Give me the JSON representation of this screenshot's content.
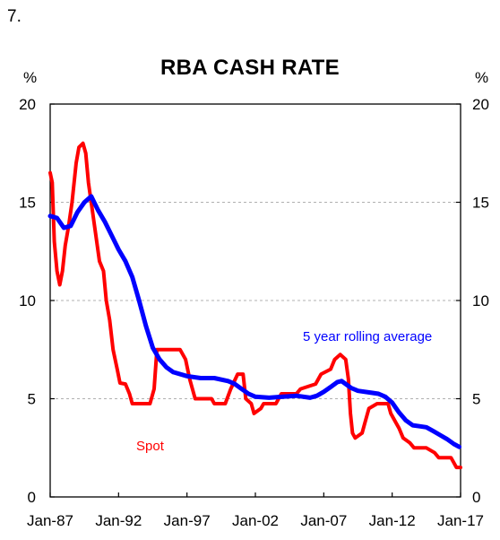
{
  "page_number": "7.",
  "chart_data": {
    "type": "line",
    "title": "RBA CASH RATE",
    "ylabel_left": "%",
    "ylabel_right": "%",
    "ylim": [
      0,
      20
    ],
    "y_ticks": [
      "0",
      "5",
      "10",
      "15",
      "20"
    ],
    "xlim": [
      1987.0,
      2017.0
    ],
    "x_ticks": [
      {
        "label": "Jan-87",
        "x": 1987.0
      },
      {
        "label": "Jan-92",
        "x": 1992.0
      },
      {
        "label": "Jan-97",
        "x": 1997.0
      },
      {
        "label": "Jan-02",
        "x": 2002.0
      },
      {
        "label": "Jan-07",
        "x": 2007.0
      },
      {
        "label": "Jan-12",
        "x": 2012.0
      },
      {
        "label": "Jan-17",
        "x": 2017.0
      }
    ],
    "grid": "horizontal dashed",
    "series": [
      {
        "name": "Spot",
        "color": "#ff0000",
        "points": [
          [
            1987.0,
            16.5
          ],
          [
            1987.15,
            16.0
          ],
          [
            1987.3,
            13.0
          ],
          [
            1987.5,
            11.5
          ],
          [
            1987.7,
            10.8
          ],
          [
            1987.9,
            11.5
          ],
          [
            1988.1,
            12.8
          ],
          [
            1988.35,
            13.8
          ],
          [
            1988.6,
            15.0
          ],
          [
            1988.9,
            17.0
          ],
          [
            1989.1,
            17.8
          ],
          [
            1989.4,
            18.0
          ],
          [
            1989.6,
            17.5
          ],
          [
            1989.8,
            16.0
          ],
          [
            1990.0,
            15.0
          ],
          [
            1990.3,
            13.5
          ],
          [
            1990.6,
            12.0
          ],
          [
            1990.9,
            11.5
          ],
          [
            1991.1,
            10.0
          ],
          [
            1991.35,
            9.0
          ],
          [
            1991.6,
            7.5
          ],
          [
            1991.9,
            6.5
          ],
          [
            1992.1,
            5.8
          ],
          [
            1992.5,
            5.75
          ],
          [
            1992.8,
            5.25
          ],
          [
            1993.0,
            4.75
          ],
          [
            1993.5,
            4.75
          ],
          [
            1994.3,
            4.75
          ],
          [
            1994.6,
            5.5
          ],
          [
            1994.8,
            7.5
          ],
          [
            1995.5,
            7.5
          ],
          [
            1996.5,
            7.5
          ],
          [
            1996.9,
            7.0
          ],
          [
            1997.2,
            6.0
          ],
          [
            1997.6,
            5.0
          ],
          [
            1998.0,
            5.0
          ],
          [
            1998.8,
            5.0
          ],
          [
            1999.0,
            4.75
          ],
          [
            1999.8,
            4.75
          ],
          [
            2000.2,
            5.5
          ],
          [
            2000.7,
            6.25
          ],
          [
            2001.1,
            6.25
          ],
          [
            2001.3,
            5.0
          ],
          [
            2001.7,
            4.75
          ],
          [
            2001.9,
            4.25
          ],
          [
            2002.4,
            4.5
          ],
          [
            2002.6,
            4.75
          ],
          [
            2003.5,
            4.75
          ],
          [
            2003.9,
            5.25
          ],
          [
            2005.0,
            5.25
          ],
          [
            2005.3,
            5.5
          ],
          [
            2006.4,
            5.75
          ],
          [
            2006.8,
            6.25
          ],
          [
            2007.5,
            6.5
          ],
          [
            2007.8,
            7.0
          ],
          [
            2008.2,
            7.25
          ],
          [
            2008.6,
            7.0
          ],
          [
            2008.8,
            6.0
          ],
          [
            2008.95,
            4.25
          ],
          [
            2009.1,
            3.25
          ],
          [
            2009.3,
            3.0
          ],
          [
            2009.8,
            3.25
          ],
          [
            2010.0,
            3.75
          ],
          [
            2010.3,
            4.5
          ],
          [
            2010.9,
            4.75
          ],
          [
            2011.7,
            4.75
          ],
          [
            2011.9,
            4.25
          ],
          [
            2012.3,
            3.75
          ],
          [
            2012.5,
            3.5
          ],
          [
            2012.8,
            3.0
          ],
          [
            2013.3,
            2.75
          ],
          [
            2013.6,
            2.5
          ],
          [
            2014.5,
            2.5
          ],
          [
            2015.1,
            2.25
          ],
          [
            2015.4,
            2.0
          ],
          [
            2016.3,
            2.0
          ],
          [
            2016.5,
            1.75
          ],
          [
            2016.7,
            1.5
          ],
          [
            2017.0,
            1.5
          ]
        ]
      },
      {
        "name": "5 year rolling average",
        "color": "#0000ff",
        "points": [
          [
            1987.0,
            14.3
          ],
          [
            1987.5,
            14.2
          ],
          [
            1988.0,
            13.7
          ],
          [
            1988.5,
            13.8
          ],
          [
            1989.0,
            14.5
          ],
          [
            1989.5,
            15.0
          ],
          [
            1990.0,
            15.3
          ],
          [
            1990.5,
            14.6
          ],
          [
            1991.0,
            14.0
          ],
          [
            1991.5,
            13.3
          ],
          [
            1992.0,
            12.6
          ],
          [
            1992.5,
            12.0
          ],
          [
            1993.0,
            11.2
          ],
          [
            1993.5,
            10.0
          ],
          [
            1994.0,
            8.7
          ],
          [
            1994.5,
            7.6
          ],
          [
            1995.0,
            7.0
          ],
          [
            1995.5,
            6.6
          ],
          [
            1996.0,
            6.35
          ],
          [
            1997.0,
            6.15
          ],
          [
            1998.0,
            6.05
          ],
          [
            1999.0,
            6.05
          ],
          [
            2000.0,
            5.9
          ],
          [
            2000.5,
            5.75
          ],
          [
            2001.0,
            5.5
          ],
          [
            2001.5,
            5.25
          ],
          [
            2002.0,
            5.1
          ],
          [
            2003.0,
            5.05
          ],
          [
            2004.0,
            5.1
          ],
          [
            2005.0,
            5.15
          ],
          [
            2006.0,
            5.05
          ],
          [
            2006.5,
            5.15
          ],
          [
            2007.0,
            5.35
          ],
          [
            2007.5,
            5.6
          ],
          [
            2008.0,
            5.85
          ],
          [
            2008.3,
            5.9
          ],
          [
            2008.7,
            5.7
          ],
          [
            2009.0,
            5.55
          ],
          [
            2009.5,
            5.4
          ],
          [
            2010.5,
            5.3
          ],
          [
            2011.0,
            5.25
          ],
          [
            2011.5,
            5.1
          ],
          [
            2012.0,
            4.8
          ],
          [
            2012.5,
            4.3
          ],
          [
            2013.0,
            3.9
          ],
          [
            2013.5,
            3.65
          ],
          [
            2014.0,
            3.6
          ],
          [
            2014.5,
            3.55
          ],
          [
            2015.0,
            3.35
          ],
          [
            2015.5,
            3.15
          ],
          [
            2016.0,
            2.95
          ],
          [
            2016.5,
            2.7
          ],
          [
            2016.9,
            2.55
          ]
        ]
      }
    ],
    "annotations": [
      {
        "text": "5 year rolling average",
        "color": "#0000ff",
        "near": "right-middle"
      },
      {
        "text": "Spot",
        "color": "#ff0000",
        "near": "left-lower"
      }
    ]
  }
}
